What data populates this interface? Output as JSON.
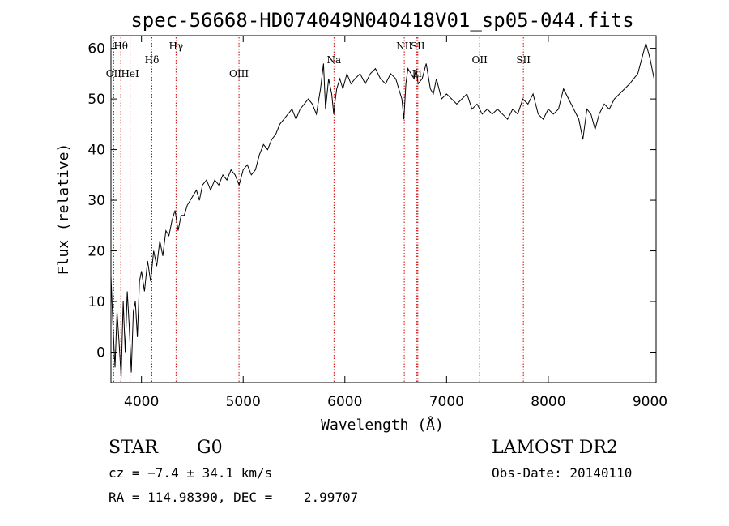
{
  "chart_data": {
    "type": "line",
    "title": "spec-56668-HD074049N040418V01_sp05-044.fits",
    "xlabel": "Wavelength (Å)",
    "ylabel": "Flux (relative)",
    "xlim": [
      3700,
      9060
    ],
    "ylim": [
      -6,
      62.5
    ],
    "x_ticks": [
      4000,
      5000,
      6000,
      7000,
      8000,
      9000
    ],
    "y_ticks": [
      0,
      10,
      20,
      30,
      40,
      50,
      60
    ],
    "grid": false,
    "line_color": "#000000",
    "marker_color": "#cc0000",
    "series": [
      {
        "x": [
          3700,
          3720,
          3740,
          3760,
          3780,
          3800,
          3820,
          3840,
          3860,
          3880,
          3900,
          3920,
          3940,
          3960,
          3980,
          4000,
          4030,
          4060,
          4090,
          4120,
          4150,
          4180,
          4210,
          4240,
          4270,
          4300,
          4330,
          4360,
          4390,
          4420,
          4450,
          4480,
          4510,
          4540,
          4570,
          4600,
          4640,
          4680,
          4720,
          4760,
          4800,
          4840,
          4880,
          4920,
          4960,
          5000,
          5040,
          5080,
          5120,
          5160,
          5200,
          5240,
          5280,
          5320,
          5360,
          5400,
          5440,
          5480,
          5520,
          5560,
          5600,
          5640,
          5680,
          5720,
          5760,
          5790,
          5810,
          5840,
          5870,
          5890,
          5900,
          5920,
          5950,
          5980,
          6020,
          6060,
          6100,
          6150,
          6200,
          6250,
          6300,
          6350,
          6400,
          6450,
          6500,
          6530,
          6560,
          6580,
          6600,
          6620,
          6650,
          6680,
          6700,
          6720,
          6760,
          6800,
          6840,
          6870,
          6900,
          6950,
          7000,
          7050,
          7100,
          7150,
          7200,
          7250,
          7300,
          7350,
          7400,
          7450,
          7500,
          7550,
          7600,
          7650,
          7700,
          7750,
          7800,
          7850,
          7900,
          7950,
          8000,
          8050,
          8100,
          8150,
          8200,
          8250,
          8300,
          8340,
          8380,
          8420,
          8460,
          8500,
          8550,
          8600,
          8650,
          8700,
          8750,
          8800,
          8840,
          8880,
          8920,
          8960,
          9000,
          9040
        ],
        "y": [
          15,
          5,
          -3,
          8,
          2,
          -5,
          10,
          0,
          12,
          5,
          -4,
          8,
          10,
          3,
          14,
          16,
          12,
          18,
          14,
          20,
          17,
          22,
          19,
          24,
          23,
          26,
          28,
          24,
          27,
          27,
          29,
          30,
          31,
          32,
          30,
          33,
          34,
          32,
          34,
          33,
          35,
          34,
          36,
          35,
          33,
          36,
          37,
          35,
          36,
          39,
          41,
          40,
          42,
          43,
          45,
          46,
          47,
          48,
          46,
          48,
          49,
          50,
          49,
          47,
          52,
          57,
          48,
          54,
          51,
          47,
          49,
          52,
          54,
          52,
          55,
          53,
          54,
          55,
          53,
          55,
          56,
          54,
          53,
          55,
          54,
          52,
          50,
          46,
          53,
          56,
          55,
          54,
          56,
          53,
          54,
          57,
          52,
          51,
          54,
          50,
          51,
          50,
          49,
          50,
          51,
          48,
          49,
          47,
          48,
          47,
          48,
          47,
          46,
          48,
          47,
          50,
          49,
          51,
          47,
          46,
          48,
          47,
          48,
          52,
          50,
          48,
          46,
          42,
          48,
          47,
          44,
          47,
          49,
          48,
          50,
          51,
          52,
          53,
          54,
          55,
          58,
          61,
          58,
          54
        ]
      }
    ],
    "line_markers": [
      {
        "label": "Hθ",
        "x": 3797,
        "row": 1
      },
      {
        "label": "OII",
        "x": 3727,
        "row": 2
      },
      {
        "label": "HeI",
        "x": 3888,
        "row": 2
      },
      {
        "label": "Hδ",
        "x": 4102,
        "row": 3
      },
      {
        "label": "Hγ",
        "x": 4340,
        "row": 1
      },
      {
        "label": "OIII",
        "x": 4959,
        "row": 2
      },
      {
        "label": "Na",
        "x": 5893,
        "row": 3
      },
      {
        "label": "NII",
        "x": 6584,
        "row": 1
      },
      {
        "label": "SII",
        "x": 6717,
        "row": 1
      },
      {
        "label": "Li",
        "x": 6708,
        "row": 2
      },
      {
        "label": "OII",
        "x": 7325,
        "row": 3
      },
      {
        "label": "SII",
        "x": 7755,
        "row": 3
      }
    ]
  },
  "info": {
    "class": "STAR",
    "subclass": "G0",
    "survey": "LAMOST DR2",
    "cz": "cz = −7.4 ± 34.1 km/s",
    "obs_date": "Obs-Date: 20140110",
    "radec": "RA = 114.98390, DEC =    2.99707"
  }
}
